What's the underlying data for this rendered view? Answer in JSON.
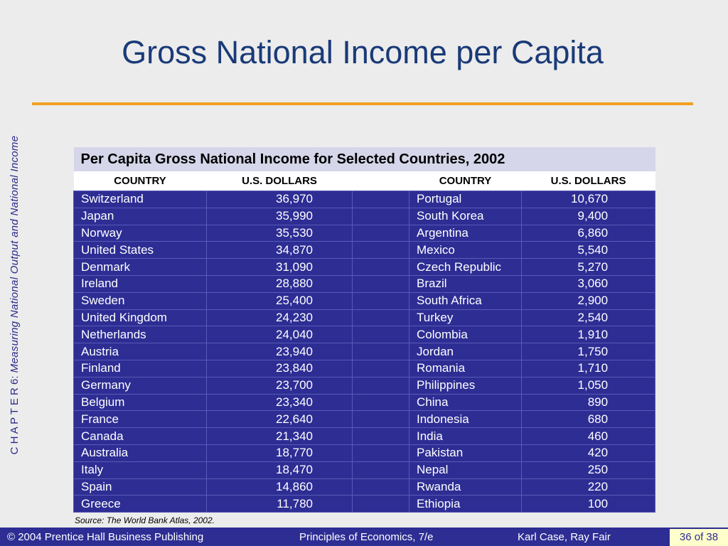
{
  "sidebar": {
    "chapter": "C H A P T E R 6:",
    "subtitle": "Measuring National Output and National Income"
  },
  "title": "Gross National Income per Capita",
  "table": {
    "caption": "Per Capita Gross National Income for Selected Countries, 2002",
    "headers": [
      "COUNTRY",
      "U.S. DOLLARS",
      "COUNTRY",
      "U.S. DOLLARS"
    ],
    "rows": [
      [
        "Switzerland",
        "36,970",
        "Portugal",
        "10,670"
      ],
      [
        "Japan",
        "35,990",
        "South Korea",
        "9,400"
      ],
      [
        "Norway",
        "35,530",
        "Argentina",
        "6,860"
      ],
      [
        "United States",
        "34,870",
        "Mexico",
        "5,540"
      ],
      [
        "Denmark",
        "31,090",
        "Czech Republic",
        "5,270"
      ],
      [
        "Ireland",
        "28,880",
        "Brazil",
        "3,060"
      ],
      [
        "Sweden",
        "25,400",
        "South Africa",
        "2,900"
      ],
      [
        "United Kingdom",
        "24,230",
        "Turkey",
        "2,540"
      ],
      [
        "Netherlands",
        "24,040",
        "Colombia",
        "1,910"
      ],
      [
        "Austria",
        "23,940",
        "Jordan",
        "1,750"
      ],
      [
        "Finland",
        "23,840",
        "Romania",
        "1,710"
      ],
      [
        "Germany",
        "23,700",
        "Philippines",
        "1,050"
      ],
      [
        "Belgium",
        "23,340",
        "China",
        "890"
      ],
      [
        "France",
        "22,640",
        "Indonesia",
        "680"
      ],
      [
        "Canada",
        "21,340",
        "India",
        "460"
      ],
      [
        "Australia",
        "18,770",
        "Pakistan",
        "420"
      ],
      [
        "Italy",
        "18,470",
        "Nepal",
        "250"
      ],
      [
        "Spain",
        "14,860",
        "Rwanda",
        "220"
      ],
      [
        "Greece",
        "11,780",
        "Ethiopia",
        "100"
      ]
    ],
    "source": "Source:  The World Bank Atlas, 2002."
  },
  "footer": {
    "left": "© 2004 Prentice Hall Business Publishing",
    "center": "Principles of Economics, 7/e",
    "right": "Karl Case, Ray Fair",
    "page": "36 of 38"
  }
}
